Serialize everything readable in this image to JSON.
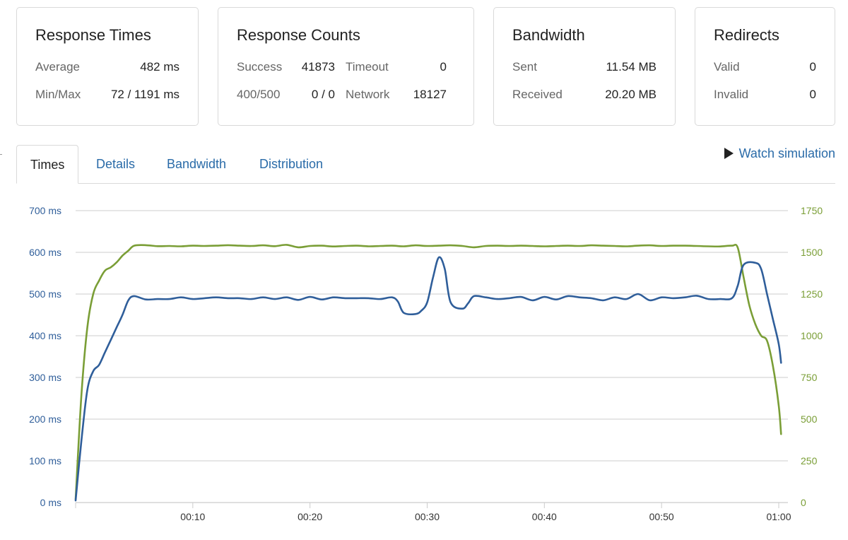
{
  "cards": {
    "response_times": {
      "title": "Response Times",
      "average_label": "Average",
      "average_value": "482 ms",
      "minmax_label": "Min/Max",
      "minmax_value": "72 / 1191 ms"
    },
    "response_counts": {
      "title": "Response Counts",
      "success_label": "Success",
      "success_value": "41873",
      "timeout_label": "Timeout",
      "timeout_value": "0",
      "http_error_label": "400/500",
      "http_error_value": "0 / 0",
      "network_label": "Network",
      "network_value": "18127"
    },
    "bandwidth": {
      "title": "Bandwidth",
      "sent_label": "Sent",
      "sent_value": "11.54 MB",
      "received_label": "Received",
      "received_value": "20.20 MB"
    },
    "redirects": {
      "title": "Redirects",
      "valid_label": "Valid",
      "valid_value": "0",
      "invalid_label": "Invalid",
      "invalid_value": "0"
    }
  },
  "tabs": [
    {
      "label": "Times",
      "active": true
    },
    {
      "label": "Details",
      "active": false
    },
    {
      "label": "Bandwidth",
      "active": false
    },
    {
      "label": "Distribution",
      "active": false
    }
  ],
  "watch_simulation": {
    "label": "Watch simulation",
    "icon": "play-icon"
  },
  "colors": {
    "response_time": "#2f5e9a",
    "requests": "#7a9e36",
    "link": "#2a6ba8",
    "grid": "#cccccc"
  },
  "chart_data": {
    "type": "line",
    "x_ticks": [
      "00:10",
      "00:20",
      "00:30",
      "00:40",
      "00:50",
      "01:00"
    ],
    "x_tick_seconds": [
      10,
      20,
      30,
      40,
      50,
      60
    ],
    "xlim": [
      0,
      60
    ],
    "y_left": {
      "ticks": [
        "0 ms",
        "100 ms",
        "200 ms",
        "300 ms",
        "400 ms",
        "500 ms",
        "600 ms",
        "700 ms"
      ],
      "lim": [
        0,
        700
      ]
    },
    "y_right": {
      "ticks": [
        "0",
        "250",
        "500",
        "750",
        "1000",
        "1250",
        "1500",
        "1750"
      ],
      "lim": [
        0,
        1750
      ]
    },
    "grid": true,
    "series": [
      {
        "axis": "left",
        "color": "#2f5e9a",
        "points": [
          [
            0,
            5
          ],
          [
            0.5,
            150
          ],
          [
            1,
            270
          ],
          [
            1.5,
            315
          ],
          [
            2,
            330
          ],
          [
            2.5,
            360
          ],
          [
            3,
            390
          ],
          [
            3.5,
            420
          ],
          [
            4,
            450
          ],
          [
            4.5,
            485
          ],
          [
            5,
            495
          ],
          [
            6,
            487
          ],
          [
            7,
            488
          ],
          [
            8,
            488
          ],
          [
            9,
            492
          ],
          [
            10,
            488
          ],
          [
            11,
            490
          ],
          [
            12,
            492
          ],
          [
            13,
            490
          ],
          [
            14,
            490
          ],
          [
            15,
            488
          ],
          [
            16,
            492
          ],
          [
            17,
            488
          ],
          [
            18,
            492
          ],
          [
            19,
            486
          ],
          [
            20,
            493
          ],
          [
            21,
            487
          ],
          [
            22,
            492
          ],
          [
            23,
            490
          ],
          [
            24,
            490
          ],
          [
            25,
            490
          ],
          [
            26,
            488
          ],
          [
            27,
            492
          ],
          [
            27.5,
            482
          ],
          [
            28,
            455
          ],
          [
            29,
            452
          ],
          [
            29.5,
            460
          ],
          [
            30,
            480
          ],
          [
            30.5,
            540
          ],
          [
            31,
            588
          ],
          [
            31.5,
            560
          ],
          [
            32,
            480
          ],
          [
            33,
            465
          ],
          [
            33.5,
            478
          ],
          [
            34,
            495
          ],
          [
            35,
            492
          ],
          [
            36,
            488
          ],
          [
            37,
            490
          ],
          [
            38,
            493
          ],
          [
            39,
            485
          ],
          [
            40,
            493
          ],
          [
            41,
            487
          ],
          [
            42,
            495
          ],
          [
            43,
            492
          ],
          [
            44,
            490
          ],
          [
            45,
            485
          ],
          [
            46,
            492
          ],
          [
            47,
            488
          ],
          [
            48,
            500
          ],
          [
            49,
            485
          ],
          [
            50,
            492
          ],
          [
            51,
            490
          ],
          [
            52,
            492
          ],
          [
            53,
            496
          ],
          [
            54,
            488
          ],
          [
            55,
            488
          ],
          [
            56,
            490
          ],
          [
            56.5,
            520
          ],
          [
            57,
            570
          ],
          [
            58,
            575
          ],
          [
            58.5,
            560
          ],
          [
            59,
            500
          ],
          [
            59.5,
            440
          ],
          [
            60,
            380
          ],
          [
            60.2,
            335
          ]
        ]
      },
      {
        "axis": "right",
        "color": "#7a9e36",
        "points": [
          [
            0,
            20
          ],
          [
            0.5,
            650
          ],
          [
            1,
            1050
          ],
          [
            1.5,
            1250
          ],
          [
            2,
            1330
          ],
          [
            2.5,
            1390
          ],
          [
            3,
            1410
          ],
          [
            3.5,
            1440
          ],
          [
            4,
            1480
          ],
          [
            4.5,
            1510
          ],
          [
            5,
            1540
          ],
          [
            6,
            1543
          ],
          [
            7,
            1537
          ],
          [
            8,
            1538
          ],
          [
            9,
            1536
          ],
          [
            10,
            1540
          ],
          [
            11,
            1538
          ],
          [
            12,
            1540
          ],
          [
            13,
            1543
          ],
          [
            14,
            1540
          ],
          [
            15,
            1538
          ],
          [
            16,
            1542
          ],
          [
            17,
            1537
          ],
          [
            18,
            1545
          ],
          [
            19,
            1530
          ],
          [
            20,
            1538
          ],
          [
            21,
            1540
          ],
          [
            22,
            1535
          ],
          [
            23,
            1538
          ],
          [
            24,
            1540
          ],
          [
            25,
            1536
          ],
          [
            26,
            1538
          ],
          [
            27,
            1540
          ],
          [
            28,
            1536
          ],
          [
            29,
            1542
          ],
          [
            30,
            1538
          ],
          [
            31,
            1540
          ],
          [
            32,
            1542
          ],
          [
            33,
            1538
          ],
          [
            34,
            1530
          ],
          [
            35,
            1538
          ],
          [
            36,
            1540
          ],
          [
            37,
            1538
          ],
          [
            38,
            1540
          ],
          [
            39,
            1538
          ],
          [
            40,
            1536
          ],
          [
            41,
            1538
          ],
          [
            42,
            1540
          ],
          [
            43,
            1538
          ],
          [
            44,
            1542
          ],
          [
            45,
            1540
          ],
          [
            46,
            1538
          ],
          [
            47,
            1536
          ],
          [
            48,
            1540
          ],
          [
            49,
            1542
          ],
          [
            50,
            1538
          ],
          [
            51,
            1540
          ],
          [
            52,
            1540
          ],
          [
            53,
            1538
          ],
          [
            54,
            1536
          ],
          [
            55,
            1535
          ],
          [
            56,
            1540
          ],
          [
            56.5,
            1528
          ],
          [
            57,
            1350
          ],
          [
            57.5,
            1180
          ],
          [
            58,
            1070
          ],
          [
            58.5,
            1000
          ],
          [
            59,
            970
          ],
          [
            59.5,
            820
          ],
          [
            60,
            580
          ],
          [
            60.2,
            410
          ]
        ]
      }
    ]
  }
}
